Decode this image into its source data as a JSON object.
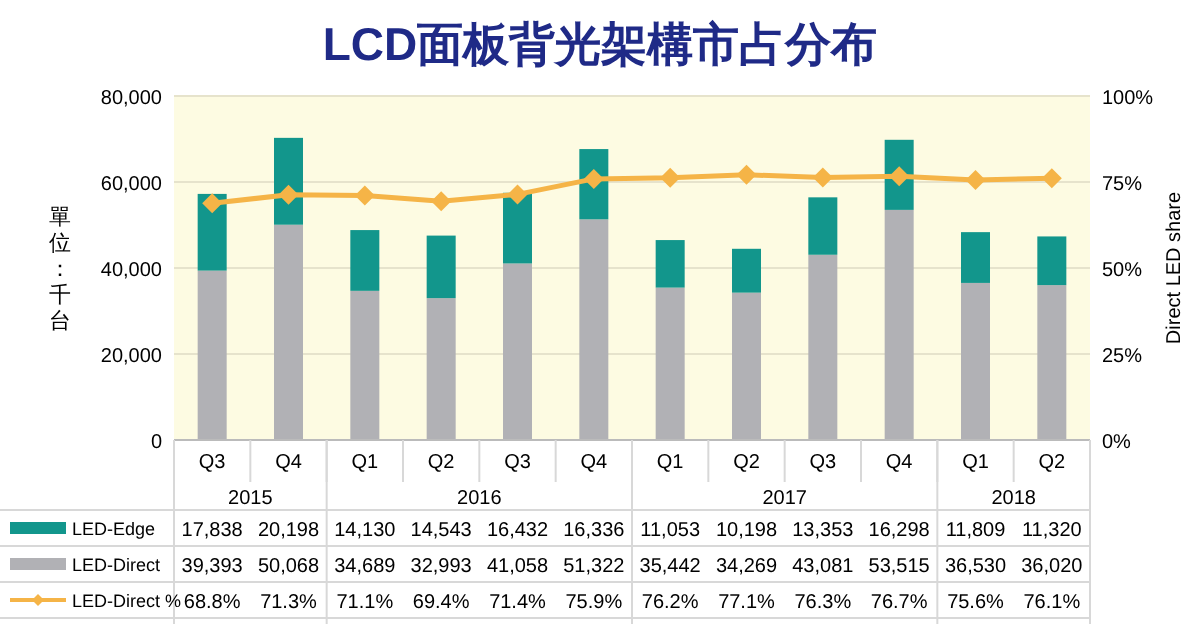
{
  "chart_data": {
    "type": "bar",
    "stacked": true,
    "title": "LCD面板背光架構市占分布",
    "ylabel": "單位：千台",
    "y2label": "Direct LED share",
    "categories": [
      "Q3",
      "Q4",
      "Q1",
      "Q2",
      "Q3",
      "Q4",
      "Q1",
      "Q2",
      "Q3",
      "Q4",
      "Q1",
      "Q2"
    ],
    "annotations": [
      "2015",
      "2016",
      "2017",
      "2018"
    ],
    "series": [
      {
        "name": "LED-Direct",
        "color": "#b1b1b5",
        "values": [
          39393,
          50068,
          34689,
          32993,
          41058,
          51322,
          35442,
          34269,
          43081,
          53515,
          36530,
          36020
        ],
        "value_labels": [
          "39,393",
          "50,068",
          "34,689",
          "32,993",
          "41,058",
          "51,322",
          "35,442",
          "34,269",
          "43,081",
          "53,515",
          "36,530",
          "36,020"
        ]
      },
      {
        "name": "LED-Edge",
        "color": "#12968c",
        "values": [
          17838,
          20198,
          14130,
          14543,
          16432,
          16336,
          11053,
          10198,
          13353,
          16298,
          11809,
          11320
        ],
        "value_labels": [
          "17,838",
          "20,198",
          "14,130",
          "14,543",
          "16,432",
          "16,336",
          "11,053",
          "10,198",
          "13,353",
          "16,298",
          "11,809",
          "11,320"
        ]
      },
      {
        "name": "LED-Direct %",
        "type": "line",
        "axis": "y2",
        "marker": "diamond",
        "color": "#f5b447",
        "values": [
          68.8,
          71.3,
          71.1,
          69.4,
          71.4,
          75.9,
          76.2,
          77.1,
          76.3,
          76.7,
          75.6,
          76.1
        ],
        "value_labels": [
          "68.8%",
          "71.3%",
          "71.1%",
          "69.4%",
          "71.4%",
          "75.9%",
          "76.2%",
          "77.1%",
          "76.3%",
          "76.7%",
          "75.6%",
          "76.1%"
        ]
      }
    ],
    "ylim": [
      0,
      80000
    ],
    "yticks": [
      {
        "value": 0,
        "label": "0"
      },
      {
        "value": 20000,
        "label": "20,000"
      },
      {
        "value": 40000,
        "label": "40,000"
      },
      {
        "value": 60000,
        "label": "60,000"
      },
      {
        "value": 80000,
        "label": "80,000"
      }
    ],
    "y2lim": [
      0,
      100
    ],
    "y2ticks": [
      {
        "value": 0,
        "label": "0%"
      },
      {
        "value": 25,
        "label": "25%"
      },
      {
        "value": 50,
        "label": "50%"
      },
      {
        "value": 75,
        "label": "75%"
      },
      {
        "value": 100,
        "label": "100%"
      }
    ],
    "grid": "y",
    "legend": "bottom"
  }
}
